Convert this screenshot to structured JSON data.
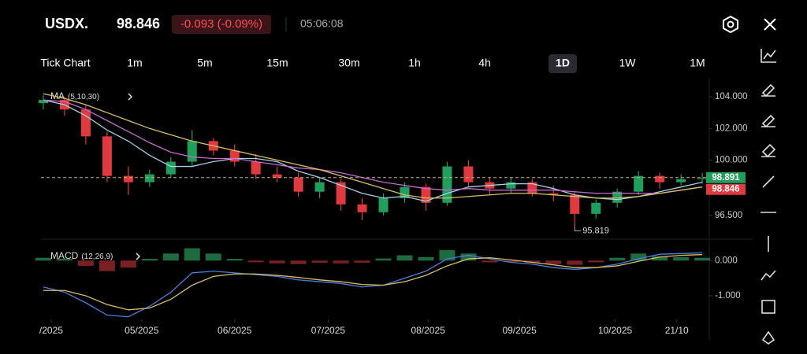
{
  "header": {
    "symbol": "USDX.",
    "price": 98.846,
    "change": "-0.093 (-0.09%)",
    "time": "05:06:08"
  },
  "timeframes": {
    "items": [
      "Tick Chart",
      "1m",
      "5m",
      "15m",
      "30m",
      "1h",
      "4h",
      "1D",
      "1W",
      "1M"
    ],
    "active": 7
  },
  "chart_data": [
    {
      "type": "candlestick",
      "indicator": "MA",
      "indicator_params": "(5,10,30)",
      "up_color": "#1f9e5c",
      "down_color": "#e0393e",
      "open": [
        103.6,
        103.8,
        103.2,
        101.5,
        99.0,
        98.6,
        99.1,
        99.9,
        101.2,
        100.6,
        99.9,
        99.1,
        98.9,
        98.0,
        98.6,
        97.2,
        96.7,
        97.6,
        98.3,
        97.3,
        99.6,
        98.6,
        98.2,
        98.6,
        97.9,
        97.8,
        96.6,
        97.3,
        98.0,
        99.0,
        98.6,
        98.8
      ],
      "high": [
        104.1,
        104.0,
        103.5,
        101.8,
        99.6,
        99.4,
        100.2,
        101.9,
        101.4,
        101.0,
        100.4,
        99.6,
        99.2,
        98.9,
        98.8,
        97.6,
        97.9,
        98.6,
        98.5,
        99.9,
        100.0,
        98.9,
        98.9,
        98.8,
        98.4,
        98.0,
        97.5,
        98.2,
        99.3,
        99.2,
        99.1,
        99.2
      ],
      "low": [
        103.2,
        102.8,
        101.0,
        98.6,
        97.8,
        98.3,
        98.9,
        99.6,
        100.3,
        99.6,
        98.8,
        98.6,
        97.7,
        97.6,
        96.8,
        96.2,
        96.5,
        97.3,
        96.8,
        97.1,
        98.3,
        97.8,
        97.9,
        97.7,
        97.4,
        95.819,
        96.3,
        97.0,
        97.8,
        98.2,
        98.4,
        98.5
      ],
      "close": [
        103.8,
        103.2,
        101.5,
        99.0,
        98.6,
        99.1,
        99.9,
        101.2,
        100.6,
        99.9,
        99.1,
        98.9,
        98.0,
        98.6,
        97.2,
        96.7,
        97.6,
        98.3,
        97.3,
        99.6,
        98.6,
        98.2,
        98.6,
        97.9,
        97.8,
        96.6,
        97.3,
        98.0,
        99.0,
        98.6,
        98.8,
        98.846
      ],
      "series": [
        {
          "color": "#9fd3e6",
          "values": [
            103.8,
            103.5,
            102.8,
            101.9,
            101.2,
            100.3,
            99.6,
            99.6,
            99.9,
            100.1,
            100.1,
            99.9,
            99.3,
            98.9,
            98.4,
            97.9,
            97.6,
            97.7,
            97.4,
            97.9,
            98.3,
            98.4,
            98.5,
            98.5,
            98.2,
            97.8,
            97.6,
            97.5,
            97.7,
            98.0,
            98.3,
            98.6
          ]
        },
        {
          "color": "#c86ad0",
          "values": [
            103.8,
            103.7,
            103.2,
            102.5,
            101.8,
            101.1,
            100.5,
            100.2,
            100.1,
            100.1,
            99.9,
            99.7,
            99.5,
            99.4,
            99.2,
            98.9,
            98.6,
            98.4,
            98.2,
            98.1,
            98.2,
            98.1,
            98.1,
            98.1,
            98.1,
            98.0,
            97.9,
            97.9,
            97.9,
            97.9,
            98.1,
            98.3
          ]
        },
        {
          "color": "#d8c060",
          "values": [
            104.2,
            103.9,
            103.5,
            103.0,
            102.5,
            102.0,
            101.6,
            101.2,
            100.9,
            100.6,
            100.3,
            100.0,
            99.7,
            99.4,
            99.0,
            98.6,
            98.2,
            97.8,
            97.6,
            97.6,
            97.7,
            97.8,
            97.9,
            97.9,
            97.8,
            97.7,
            97.6,
            97.6,
            97.7,
            97.9,
            98.1,
            98.3
          ]
        }
      ],
      "annotations": [
        {
          "index": 25,
          "value": 95.819
        }
      ],
      "price_labels": [
        {
          "value": 98.891,
          "color": "#1f9e5c"
        },
        {
          "value": 98.846,
          "color": "#e0393e"
        }
      ],
      "ylim": [
        95.2,
        104.9
      ],
      "yticks": [
        {
          "value": 104,
          "label": "104.000"
        },
        {
          "value": 102,
          "label": "102.000"
        },
        {
          "value": 100,
          "label": "100.000"
        },
        {
          "value": 96.5,
          "label": "96.500"
        }
      ],
      "xlim": [
        -0.11,
        31.33
      ],
      "xticks": [
        {
          "value": 0.37,
          "label": "/2025"
        },
        {
          "value": 4.63,
          "label": "05/2025"
        },
        {
          "value": 9.0,
          "label": "06/2025"
        },
        {
          "value": 13.4,
          "label": "07/2025"
        },
        {
          "value": 18.1,
          "label": "08/2025"
        },
        {
          "value": 22.4,
          "label": "09/2025"
        },
        {
          "value": 26.9,
          "label": "10/2025"
        },
        {
          "value": 29.8,
          "label": "21/10"
        }
      ]
    },
    {
      "type": "macd",
      "indicator": "MACD",
      "indicator_params": "(12,26,9)",
      "up_color": "#1d6b3f",
      "down_color": "#7a2024",
      "histogram": [
        0.08,
        0.05,
        -0.15,
        -0.3,
        -0.2,
        0.05,
        0.2,
        0.35,
        0.2,
        0.05,
        -0.05,
        -0.08,
        -0.1,
        -0.06,
        -0.08,
        -0.06,
        0.06,
        0.15,
        0.1,
        0.3,
        0.2,
        -0.05,
        -0.04,
        -0.06,
        -0.1,
        -0.12,
        -0.05,
        0.08,
        0.2,
        0.12,
        0.1,
        0.08
      ],
      "series": [
        {
          "color": "#4a7fe0",
          "values": [
            -0.75,
            -0.9,
            -1.2,
            -1.55,
            -1.6,
            -1.3,
            -0.9,
            -0.35,
            -0.3,
            -0.35,
            -0.4,
            -0.45,
            -0.55,
            -0.6,
            -0.65,
            -0.75,
            -0.7,
            -0.5,
            -0.3,
            0.05,
            0.15,
            0.05,
            -0.05,
            -0.1,
            -0.2,
            -0.25,
            -0.2,
            -0.1,
            0.05,
            0.18,
            0.2,
            0.22
          ]
        },
        {
          "color": "#d8c060",
          "values": [
            -0.85,
            -0.85,
            -1.0,
            -1.25,
            -1.4,
            -1.35,
            -1.1,
            -0.7,
            -0.45,
            -0.38,
            -0.38,
            -0.42,
            -0.48,
            -0.55,
            -0.6,
            -0.68,
            -0.7,
            -0.6,
            -0.42,
            -0.15,
            0.05,
            0.08,
            0.02,
            -0.05,
            -0.12,
            -0.2,
            -0.2,
            -0.15,
            -0.02,
            0.1,
            0.15,
            0.17
          ]
        }
      ],
      "ylim": [
        -1.65,
        0.52
      ],
      "yticks": [
        {
          "value": 0,
          "label": "0.000"
        },
        {
          "value": -1,
          "label": "-1.000"
        }
      ],
      "xlim": [
        -0.11,
        31.33
      ]
    }
  ]
}
